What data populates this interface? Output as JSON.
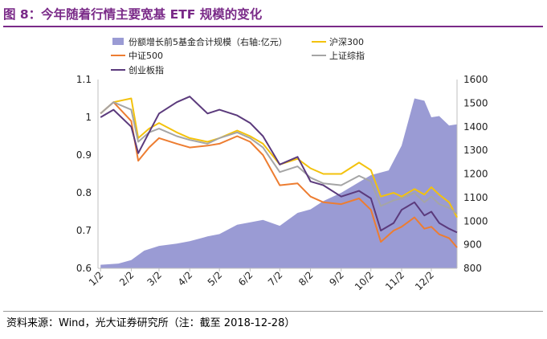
{
  "figure": {
    "title": "图 8：今年随着行情主要宽基 ETF 规模的变化",
    "source": "资料来源：Wind，光大证券研究所（注：截至 2018-12-28）"
  },
  "chart_data": {
    "type": "line",
    "x_labels": [
      "1/2",
      "2/2",
      "3/2",
      "4/2",
      "5/2",
      "6/2",
      "7/2",
      "8/2",
      "9/2",
      "10/2",
      "11/2",
      "12/2"
    ],
    "y_left": {
      "range": [
        0.6,
        1.1
      ],
      "ticks": [
        "0.6",
        "0.7",
        "0.8",
        "0.9",
        "1",
        "1.1"
      ]
    },
    "y_right": {
      "range": [
        800,
        1600
      ],
      "ticks": [
        "800",
        "900",
        "1000",
        "1100",
        "1200",
        "1300",
        "1400",
        "1500",
        "1600"
      ]
    },
    "grid": false,
    "legend_position": "top",
    "series": [
      {
        "name": "份额增长前5基金合计规模（右轴:亿元）",
        "type": "area",
        "axis": "right",
        "color": "#9a9bd4",
        "points": [
          [
            "1/2",
            815
          ],
          [
            "1/20",
            820
          ],
          [
            "2/2",
            835
          ],
          [
            "2/15",
            875
          ],
          [
            "3/2",
            895
          ],
          [
            "3/20",
            905
          ],
          [
            "4/2",
            915
          ],
          [
            "4/20",
            935
          ],
          [
            "5/2",
            945
          ],
          [
            "5/20",
            985
          ],
          [
            "6/2",
            995
          ],
          [
            "6/15",
            1005
          ],
          [
            "7/2",
            980
          ],
          [
            "7/20",
            1035
          ],
          [
            "8/2",
            1050
          ],
          [
            "8/15",
            1085
          ],
          [
            "9/2",
            1120
          ],
          [
            "9/20",
            1165
          ],
          [
            "10/2",
            1195
          ],
          [
            "10/20",
            1215
          ],
          [
            "11/2",
            1320
          ],
          [
            "11/15",
            1520
          ],
          [
            "11/25",
            1510
          ],
          [
            "12/2",
            1440
          ],
          [
            "12/10",
            1445
          ],
          [
            "12/20",
            1405
          ],
          [
            "12/28",
            1410
          ]
        ]
      },
      {
        "name": "沪深300",
        "axis": "left",
        "color": "#f3c20d",
        "points": [
          [
            "1/2",
            1.01
          ],
          [
            "1/15",
            1.04
          ],
          [
            "2/2",
            1.05
          ],
          [
            "2/9",
            0.945
          ],
          [
            "2/20",
            0.97
          ],
          [
            "3/2",
            0.985
          ],
          [
            "3/20",
            0.96
          ],
          [
            "4/2",
            0.945
          ],
          [
            "4/20",
            0.935
          ],
          [
            "5/2",
            0.945
          ],
          [
            "5/20",
            0.965
          ],
          [
            "6/2",
            0.95
          ],
          [
            "6/15",
            0.93
          ],
          [
            "7/2",
            0.875
          ],
          [
            "7/20",
            0.89
          ],
          [
            "8/2",
            0.865
          ],
          [
            "8/15",
            0.85
          ],
          [
            "9/2",
            0.85
          ],
          [
            "9/20",
            0.88
          ],
          [
            "10/2",
            0.86
          ],
          [
            "10/12",
            0.79
          ],
          [
            "10/25",
            0.8
          ],
          [
            "11/2",
            0.79
          ],
          [
            "11/15",
            0.81
          ],
          [
            "11/25",
            0.795
          ],
          [
            "12/2",
            0.815
          ],
          [
            "12/10",
            0.795
          ],
          [
            "12/20",
            0.775
          ],
          [
            "12/28",
            0.735
          ]
        ]
      },
      {
        "name": "中证500",
        "axis": "left",
        "color": "#ed7d31",
        "points": [
          [
            "1/2",
            1.01
          ],
          [
            "1/15",
            1.04
          ],
          [
            "2/2",
            0.99
          ],
          [
            "2/9",
            0.885
          ],
          [
            "2/20",
            0.92
          ],
          [
            "3/2",
            0.945
          ],
          [
            "3/20",
            0.93
          ],
          [
            "4/2",
            0.92
          ],
          [
            "4/20",
            0.925
          ],
          [
            "5/2",
            0.93
          ],
          [
            "5/20",
            0.95
          ],
          [
            "6/2",
            0.935
          ],
          [
            "6/15",
            0.9
          ],
          [
            "7/2",
            0.82
          ],
          [
            "7/20",
            0.825
          ],
          [
            "8/2",
            0.79
          ],
          [
            "8/15",
            0.775
          ],
          [
            "9/2",
            0.77
          ],
          [
            "9/20",
            0.785
          ],
          [
            "10/2",
            0.755
          ],
          [
            "10/12",
            0.67
          ],
          [
            "10/25",
            0.7
          ],
          [
            "11/2",
            0.71
          ],
          [
            "11/15",
            0.735
          ],
          [
            "11/25",
            0.705
          ],
          [
            "12/2",
            0.71
          ],
          [
            "12/10",
            0.69
          ],
          [
            "12/20",
            0.68
          ],
          [
            "12/28",
            0.655
          ]
        ]
      },
      {
        "name": "上证综指",
        "axis": "left",
        "color": "#a5a5a5",
        "points": [
          [
            "1/2",
            1.01
          ],
          [
            "1/15",
            1.04
          ],
          [
            "2/2",
            1.02
          ],
          [
            "2/9",
            0.935
          ],
          [
            "2/20",
            0.96
          ],
          [
            "3/2",
            0.97
          ],
          [
            "3/20",
            0.95
          ],
          [
            "4/2",
            0.94
          ],
          [
            "4/20",
            0.93
          ],
          [
            "5/2",
            0.945
          ],
          [
            "5/20",
            0.96
          ],
          [
            "6/2",
            0.945
          ],
          [
            "6/15",
            0.92
          ],
          [
            "7/2",
            0.855
          ],
          [
            "7/20",
            0.87
          ],
          [
            "8/2",
            0.84
          ],
          [
            "8/15",
            0.825
          ],
          [
            "9/2",
            0.82
          ],
          [
            "9/20",
            0.845
          ],
          [
            "10/2",
            0.83
          ],
          [
            "10/12",
            0.765
          ],
          [
            "10/25",
            0.78
          ],
          [
            "11/2",
            0.785
          ],
          [
            "11/15",
            0.8
          ],
          [
            "11/25",
            0.775
          ],
          [
            "12/2",
            0.79
          ],
          [
            "12/10",
            0.77
          ],
          [
            "12/20",
            0.76
          ],
          [
            "12/28",
            0.745
          ]
        ]
      },
      {
        "name": "创业板指",
        "axis": "left",
        "color": "#5b3a7c",
        "points": [
          [
            "1/2",
            1.0
          ],
          [
            "1/15",
            1.02
          ],
          [
            "2/2",
            0.975
          ],
          [
            "2/9",
            0.905
          ],
          [
            "2/20",
            0.96
          ],
          [
            "3/2",
            1.01
          ],
          [
            "3/20",
            1.04
          ],
          [
            "4/2",
            1.055
          ],
          [
            "4/20",
            1.01
          ],
          [
            "5/2",
            1.02
          ],
          [
            "5/20",
            1.005
          ],
          [
            "6/2",
            0.985
          ],
          [
            "6/15",
            0.95
          ],
          [
            "7/2",
            0.875
          ],
          [
            "7/20",
            0.895
          ],
          [
            "8/2",
            0.83
          ],
          [
            "8/15",
            0.82
          ],
          [
            "9/2",
            0.79
          ],
          [
            "9/20",
            0.805
          ],
          [
            "10/2",
            0.785
          ],
          [
            "10/12",
            0.7
          ],
          [
            "10/25",
            0.72
          ],
          [
            "11/2",
            0.755
          ],
          [
            "11/15",
            0.775
          ],
          [
            "11/25",
            0.74
          ],
          [
            "12/2",
            0.75
          ],
          [
            "12/10",
            0.72
          ],
          [
            "12/20",
            0.705
          ],
          [
            "12/28",
            0.695
          ]
        ]
      }
    ]
  }
}
